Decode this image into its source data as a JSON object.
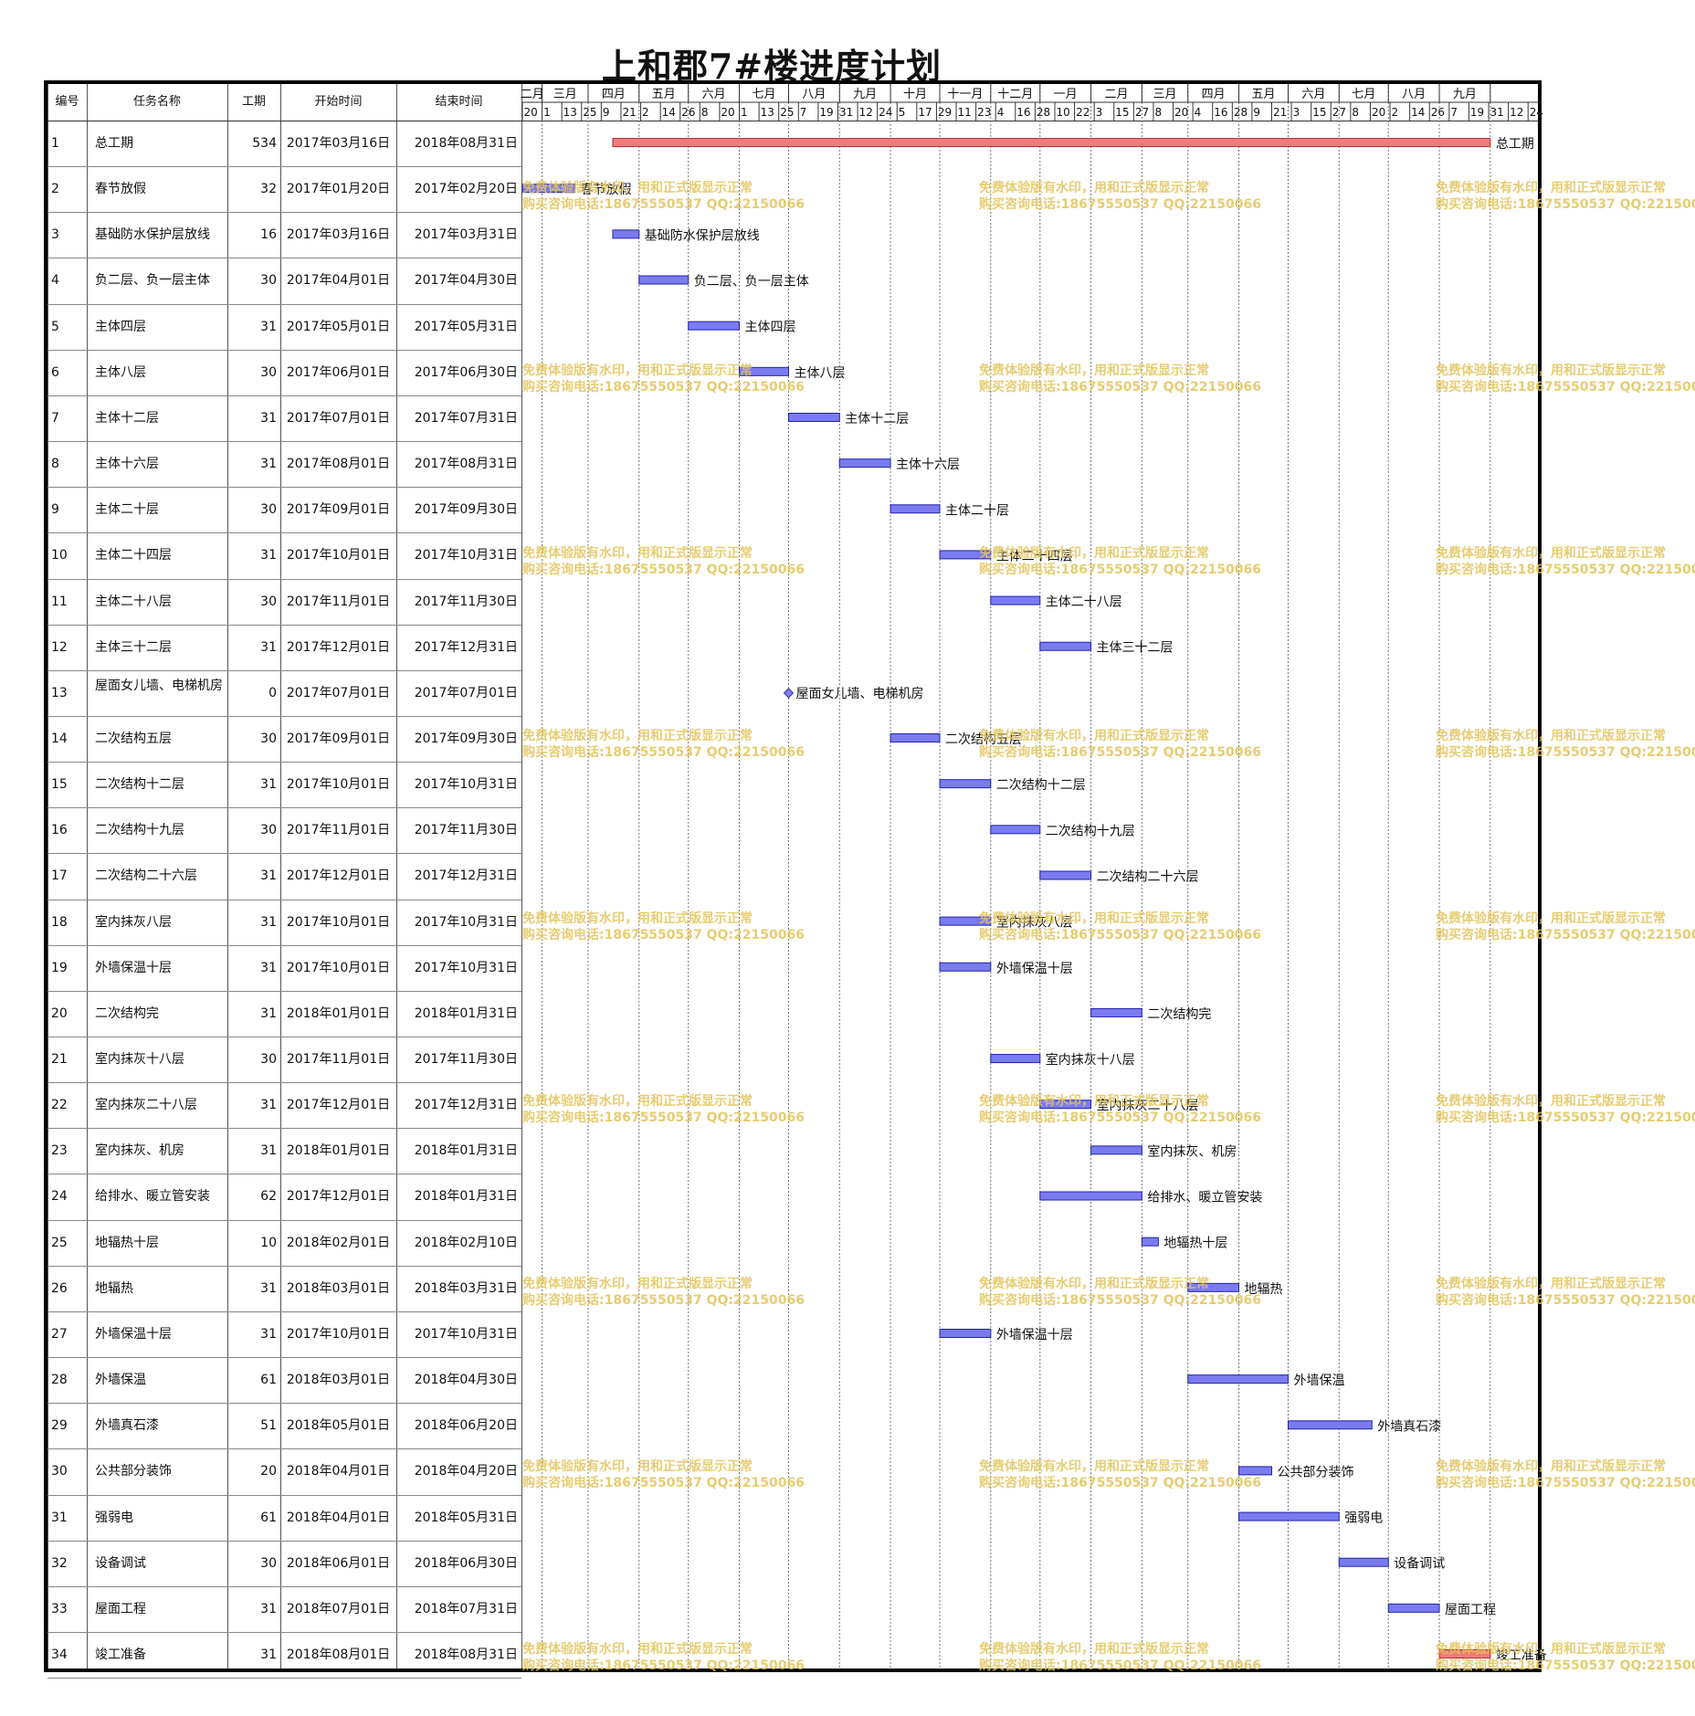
{
  "title": "上和郡7#楼进度计划",
  "columns": {
    "id": "编号",
    "name": "任务名称",
    "duration": "工期",
    "start": "开始时间",
    "end": "结束时间"
  },
  "watermark": {
    "line1": "免费体验版有水印，用和正式版显示正常",
    "line2": "购买咨询电话:18675550537 QQ:22150066",
    "color": "#e3c45a"
  },
  "colors": {
    "task_bar": "#7b7bf0",
    "summary_bar": "#f07b7b",
    "milestone": "#7b7bf0"
  },
  "chart_data": {
    "type": "gantt",
    "title": "上和郡7#楼进度计划",
    "x_axis": {
      "range": [
        "2017-01-20",
        "2018-09-30"
      ],
      "months": [
        "二月",
        "三月",
        "四月",
        "五月",
        "六月",
        "七月",
        "八月",
        "九月",
        "十月",
        "十一月",
        "十二月",
        "一月",
        "二月",
        "三月",
        "四月",
        "五月",
        "六月",
        "七月",
        "八月",
        "九月"
      ],
      "tick_dates": [
        "2017-01-20",
        "2017-02-01",
        "2017-02-13",
        "2017-02-25",
        "2017-03-09",
        "2017-03-21",
        "2017-04-02",
        "2017-04-14",
        "2017-04-26",
        "2017-05-08",
        "2017-05-20",
        "2017-06-01",
        "2017-06-13",
        "2017-06-25",
        "2017-07-07",
        "2017-07-19",
        "2017-07-31",
        "2017-08-12",
        "2017-08-24",
        "2017-09-05",
        "2017-09-17",
        "2017-09-29",
        "2017-10-11",
        "2017-10-23",
        "2017-11-04",
        "2017-11-16",
        "2017-11-28",
        "2017-12-10",
        "2017-12-22",
        "2018-01-03",
        "2018-01-15",
        "2018-01-27",
        "2018-02-08",
        "2018-02-20",
        "2018-03-04",
        "2018-03-16",
        "2018-03-28",
        "2018-04-09",
        "2018-04-21",
        "2018-05-03",
        "2018-05-15",
        "2018-05-27",
        "2018-06-08",
        "2018-06-20",
        "2018-07-02",
        "2018-07-14",
        "2018-07-26",
        "2018-08-07",
        "2018-08-19",
        "2018-08-31",
        "2018-09-12",
        "2018-09-24"
      ],
      "tick_labels": [
        "20",
        "1",
        "13",
        "25",
        "9",
        "21",
        "2",
        "14",
        "26",
        "8",
        "20",
        "1",
        "13",
        "25",
        "7",
        "19",
        "31",
        "12",
        "24",
        "5",
        "17",
        "29",
        "11",
        "23",
        "4",
        "16",
        "28",
        "10",
        "22",
        "3",
        "15",
        "27",
        "8",
        "20",
        "4",
        "16",
        "28",
        "9",
        "21",
        "3",
        "15",
        "27",
        "8",
        "20",
        "2",
        "14",
        "26",
        "7",
        "19",
        "31",
        "12",
        "24"
      ]
    },
    "tasks": [
      {
        "id": "1",
        "name": "总工期",
        "duration": "534",
        "start": "2017年03月16日",
        "end": "2018年08月31日",
        "s": "2017-03-16",
        "e": "2018-08-31",
        "kind": "summary",
        "label": "总工期"
      },
      {
        "id": "2",
        "name": "春节放假",
        "duration": "32",
        "start": "2017年01月20日",
        "end": "2017年02月20日",
        "s": "2017-01-20",
        "e": "2017-02-20",
        "kind": "task",
        "label": "春节放假"
      },
      {
        "id": "3",
        "name": "基础防水保护层放线",
        "duration": "16",
        "start": "2017年03月16日",
        "end": "2017年03月31日",
        "s": "2017-03-16",
        "e": "2017-03-31",
        "kind": "task",
        "label": "基础防水保护层放线"
      },
      {
        "id": "4",
        "name": "负二层、负一层主体",
        "duration": "30",
        "start": "2017年04月01日",
        "end": "2017年04月30日",
        "s": "2017-04-01",
        "e": "2017-04-30",
        "kind": "task",
        "label": "负二层、负一层主体"
      },
      {
        "id": "5",
        "name": "主体四层",
        "duration": "31",
        "start": "2017年05月01日",
        "end": "2017年05月31日",
        "s": "2017-05-01",
        "e": "2017-05-31",
        "kind": "task",
        "label": "主体四层"
      },
      {
        "id": "6",
        "name": "主体八层",
        "duration": "30",
        "start": "2017年06月01日",
        "end": "2017年06月30日",
        "s": "2017-06-01",
        "e": "2017-06-30",
        "kind": "task",
        "label": "主体八层"
      },
      {
        "id": "7",
        "name": "主体十二层",
        "duration": "31",
        "start": "2017年07月01日",
        "end": "2017年07月31日",
        "s": "2017-07-01",
        "e": "2017-07-31",
        "kind": "task",
        "label": "主体十二层"
      },
      {
        "id": "8",
        "name": "主体十六层",
        "duration": "31",
        "start": "2017年08月01日",
        "end": "2017年08月31日",
        "s": "2017-08-01",
        "e": "2017-08-31",
        "kind": "task",
        "label": "主体十六层"
      },
      {
        "id": "9",
        "name": "主体二十层",
        "duration": "30",
        "start": "2017年09月01日",
        "end": "2017年09月30日",
        "s": "2017-09-01",
        "e": "2017-09-30",
        "kind": "task",
        "label": "主体二十层"
      },
      {
        "id": "10",
        "name": "主体二十四层",
        "duration": "31",
        "start": "2017年10月01日",
        "end": "2017年10月31日",
        "s": "2017-10-01",
        "e": "2017-10-31",
        "kind": "task",
        "label": "主体二十四层"
      },
      {
        "id": "11",
        "name": "主体二十八层",
        "duration": "30",
        "start": "2017年11月01日",
        "end": "2017年11月30日",
        "s": "2017-11-01",
        "e": "2017-11-30",
        "kind": "task",
        "label": "主体二十八层"
      },
      {
        "id": "12",
        "name": "主体三十二层",
        "duration": "31",
        "start": "2017年12月01日",
        "end": "2017年12月31日",
        "s": "2017-12-01",
        "e": "2017-12-31",
        "kind": "task",
        "label": "主体三十二层"
      },
      {
        "id": "13",
        "name": "屋面女儿墙、电梯机房",
        "duration": "0",
        "start": "2017年07月01日",
        "end": "2017年07月01日",
        "s": "2017-07-01",
        "e": "2017-07-01",
        "kind": "milestone",
        "label": "屋面女儿墙、电梯机房"
      },
      {
        "id": "14",
        "name": "二次结构五层",
        "duration": "30",
        "start": "2017年09月01日",
        "end": "2017年09月30日",
        "s": "2017-09-01",
        "e": "2017-09-30",
        "kind": "task",
        "label": "二次结构五层"
      },
      {
        "id": "15",
        "name": "二次结构十二层",
        "duration": "31",
        "start": "2017年10月01日",
        "end": "2017年10月31日",
        "s": "2017-10-01",
        "e": "2017-10-31",
        "kind": "task",
        "label": "二次结构十二层"
      },
      {
        "id": "16",
        "name": "二次结构十九层",
        "duration": "30",
        "start": "2017年11月01日",
        "end": "2017年11月30日",
        "s": "2017-11-01",
        "e": "2017-11-30",
        "kind": "task",
        "label": "二次结构十九层"
      },
      {
        "id": "17",
        "name": "二次结构二十六层",
        "duration": "31",
        "start": "2017年12月01日",
        "end": "2017年12月31日",
        "s": "2017-12-01",
        "e": "2017-12-31",
        "kind": "task",
        "label": "二次结构二十六层"
      },
      {
        "id": "18",
        "name": "室内抹灰八层",
        "duration": "31",
        "start": "2017年10月01日",
        "end": "2017年10月31日",
        "s": "2017-10-01",
        "e": "2017-10-31",
        "kind": "task",
        "label": "室内抹灰八层"
      },
      {
        "id": "19",
        "name": "外墙保温十层",
        "duration": "31",
        "start": "2017年10月01日",
        "end": "2017年10月31日",
        "s": "2017-10-01",
        "e": "2017-10-31",
        "kind": "task",
        "label": "外墙保温十层"
      },
      {
        "id": "20",
        "name": "二次结构完",
        "duration": "31",
        "start": "2018年01月01日",
        "end": "2018年01月31日",
        "s": "2018-01-01",
        "e": "2018-01-31",
        "kind": "task",
        "label": "二次结构完"
      },
      {
        "id": "21",
        "name": "室内抹灰十八层",
        "duration": "30",
        "start": "2017年11月01日",
        "end": "2017年11月30日",
        "s": "2017-11-01",
        "e": "2017-11-30",
        "kind": "task",
        "label": "室内抹灰十八层"
      },
      {
        "id": "22",
        "name": "室内抹灰二十八层",
        "duration": "31",
        "start": "2017年12月01日",
        "end": "2017年12月31日",
        "s": "2017-12-01",
        "e": "2017-12-31",
        "kind": "task",
        "label": "室内抹灰二十八层"
      },
      {
        "id": "23",
        "name": "室内抹灰、机房",
        "duration": "31",
        "start": "2018年01月01日",
        "end": "2018年01月31日",
        "s": "2018-01-01",
        "e": "2018-01-31",
        "kind": "task",
        "label": "室内抹灰、机房"
      },
      {
        "id": "24",
        "name": "给排水、暖立管安装",
        "duration": "62",
        "start": "2017年12月01日",
        "end": "2018年01月31日",
        "s": "2017-12-01",
        "e": "2018-01-31",
        "kind": "task",
        "label": "给排水、暖立管安装"
      },
      {
        "id": "25",
        "name": "地辐热十层",
        "duration": "10",
        "start": "2018年02月01日",
        "end": "2018年02月10日",
        "s": "2018-02-01",
        "e": "2018-02-10",
        "kind": "task",
        "label": "地辐热十层"
      },
      {
        "id": "26",
        "name": "地辐热",
        "duration": "31",
        "start": "2018年03月01日",
        "end": "2018年03月31日",
        "s": "2018-03-01",
        "e": "2018-03-31",
        "kind": "task",
        "label": "地辐热"
      },
      {
        "id": "27",
        "name": "外墙保温十层",
        "duration": "31",
        "start": "2017年10月01日",
        "end": "2017年10月31日",
        "s": "2017-10-01",
        "e": "2017-10-31",
        "kind": "task",
        "label": "外墙保温十层"
      },
      {
        "id": "28",
        "name": "外墙保温",
        "duration": "61",
        "start": "2018年03月01日",
        "end": "2018年04月30日",
        "s": "2018-03-01",
        "e": "2018-04-30",
        "kind": "task",
        "label": "外墙保温"
      },
      {
        "id": "29",
        "name": "外墙真石漆",
        "duration": "51",
        "start": "2018年05月01日",
        "end": "2018年06月20日",
        "s": "2018-05-01",
        "e": "2018-06-20",
        "kind": "task",
        "label": "外墙真石漆"
      },
      {
        "id": "30",
        "name": "公共部分装饰",
        "duration": "20",
        "start": "2018年04月01日",
        "end": "2018年04月20日",
        "s": "2018-04-01",
        "e": "2018-04-20",
        "kind": "task",
        "label": "公共部分装饰"
      },
      {
        "id": "31",
        "name": "强弱电",
        "duration": "61",
        "start": "2018年04月01日",
        "end": "2018年05月31日",
        "s": "2018-04-01",
        "e": "2018-05-31",
        "kind": "task",
        "label": "强弱电"
      },
      {
        "id": "32",
        "name": "设备调试",
        "duration": "30",
        "start": "2018年06月01日",
        "end": "2018年06月30日",
        "s": "2018-06-01",
        "e": "2018-06-30",
        "kind": "task",
        "label": "设备调试"
      },
      {
        "id": "33",
        "name": "屋面工程",
        "duration": "31",
        "start": "2018年07月01日",
        "end": "2018年07月31日",
        "s": "2018-07-01",
        "e": "2018-07-31",
        "kind": "task",
        "label": "屋面工程"
      },
      {
        "id": "34",
        "name": "竣工准备",
        "duration": "31",
        "start": "2018年08月01日",
        "end": "2018年08月31日",
        "s": "2018-08-01",
        "e": "2018-08-31",
        "kind": "summary",
        "label": "竣工准备"
      }
    ]
  }
}
